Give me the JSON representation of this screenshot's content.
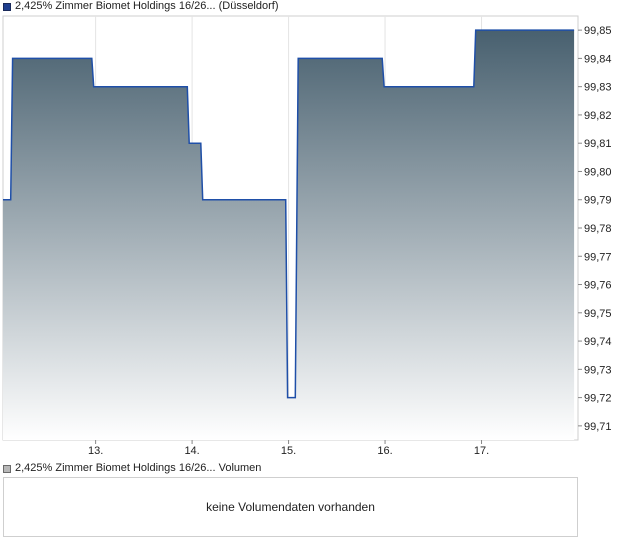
{
  "price_legend": {
    "label": "2,425% Zimmer Biomet Holdings 16/26... (Düsseldorf)",
    "color": "#1f3f8f"
  },
  "volume_legend": {
    "label": "2,425% Zimmer Biomet Holdings 16/26... Volumen",
    "color": "#b8b8b8"
  },
  "volume_panel": {
    "message": "keine Volumendaten vorhanden"
  },
  "chart_data": {
    "type": "area",
    "step": true,
    "line_color": "#1f4fa8",
    "fill_top_color": "#48606f",
    "fill_bottom_color": "#ffffff",
    "x_ticks": [
      "13.",
      "14.",
      "15.",
      "16.",
      "17."
    ],
    "y_ticks": [
      "99,85",
      "99,84",
      "99,83",
      "99,82",
      "99,81",
      "99,80",
      "99,79",
      "99,78",
      "99,77",
      "99,76",
      "99,75",
      "99,74",
      "99,73",
      "99,72",
      "99,71"
    ],
    "ylim": [
      99.705,
      99.855
    ],
    "xlim": [
      12.04,
      18.0
    ],
    "grid": true,
    "series": [
      {
        "points": [
          [
            12.04,
            99.79
          ],
          [
            12.12,
            99.79
          ],
          [
            12.14,
            99.84
          ],
          [
            12.96,
            99.84
          ],
          [
            12.98,
            99.83
          ],
          [
            13.95,
            99.83
          ],
          [
            13.97,
            99.81
          ],
          [
            14.09,
            99.81
          ],
          [
            14.11,
            99.79
          ],
          [
            14.97,
            99.79
          ],
          [
            14.99,
            99.72
          ],
          [
            15.07,
            99.72
          ],
          [
            15.1,
            99.84
          ],
          [
            15.97,
            99.84
          ],
          [
            15.99,
            99.83
          ],
          [
            16.92,
            99.83
          ],
          [
            16.94,
            99.85
          ],
          [
            17.96,
            99.85
          ]
        ]
      }
    ]
  }
}
